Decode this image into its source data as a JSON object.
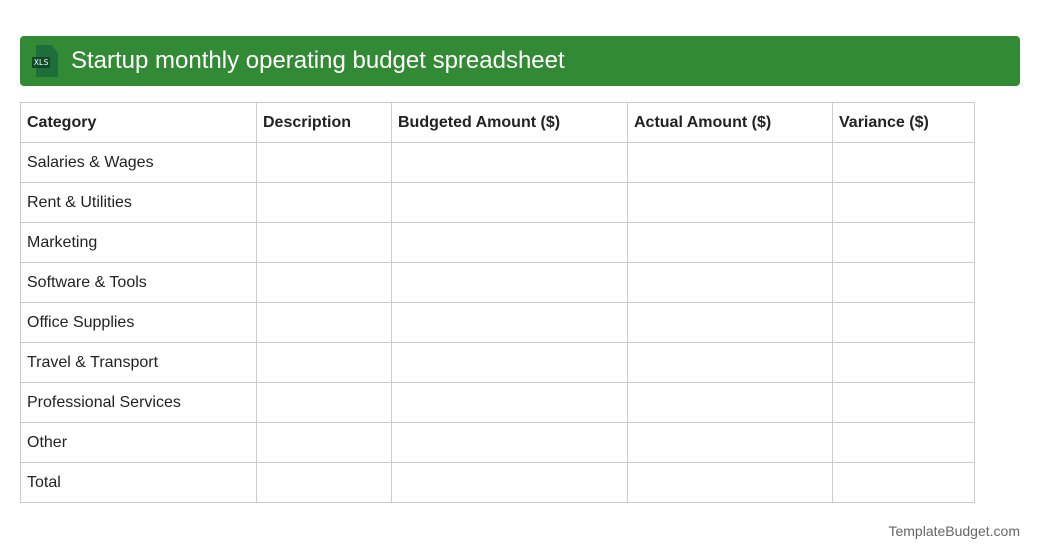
{
  "title": "Startup monthly operating budget spreadsheet",
  "icon": "xls-file-icon",
  "icon_label": "XLS",
  "columns": [
    "Category",
    "Description",
    "Budgeted Amount ($)",
    "Actual Amount ($)",
    "Variance ($)"
  ],
  "rows": [
    "Salaries & Wages",
    "Rent & Utilities",
    "Marketing",
    "Software & Tools",
    "Office Supplies",
    "Travel & Transport",
    "Professional Services",
    "Other",
    "Total"
  ],
  "footer": "TemplateBudget.com",
  "colors": {
    "header": "#338a34"
  }
}
